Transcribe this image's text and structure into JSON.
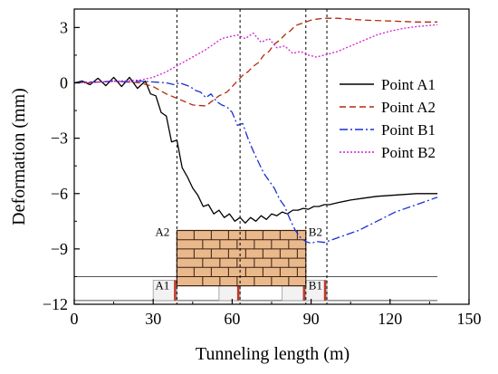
{
  "chart_data": {
    "type": "line",
    "xlabel": "Tunneling length (m)",
    "ylabel": "Deformation (mm)",
    "xlim": [
      0,
      150
    ],
    "ylim": [
      -12,
      4
    ],
    "xticks": [
      0,
      30,
      60,
      90,
      120,
      150
    ],
    "yticks": [
      3,
      0,
      -3,
      -6,
      -9,
      -12
    ],
    "xtick_labels": [
      "0",
      "30",
      "60",
      "90",
      "120",
      "150"
    ],
    "ytick_labels": [
      "3",
      "0",
      "−3",
      "−6",
      "−9",
      "−12"
    ],
    "grid": false,
    "legend_position": "right",
    "vertical_markers": [
      39,
      63,
      88,
      96
    ],
    "series": [
      {
        "name": "Point A1",
        "color": "#000000",
        "dash": "solid",
        "x": [
          0,
          3,
          6,
          9,
          12,
          15,
          18,
          21,
          24,
          27,
          29,
          31,
          33,
          35,
          37,
          39,
          41,
          43,
          45,
          47,
          49,
          51,
          53,
          55,
          57,
          59,
          61,
          63,
          65,
          67,
          69,
          71,
          73,
          75,
          77,
          79,
          81,
          83,
          85,
          87,
          89,
          91,
          93,
          95,
          97,
          100,
          105,
          110,
          115,
          120,
          125,
          130,
          138
        ],
        "y": [
          0,
          0.1,
          -0.1,
          0.25,
          -0.15,
          0.3,
          -0.2,
          0.3,
          -0.3,
          0.1,
          -0.6,
          -0.7,
          -1.6,
          -1.8,
          -3.2,
          -3.1,
          -4.6,
          -5.1,
          -5.7,
          -6.1,
          -6.7,
          -6.6,
          -7.1,
          -6.9,
          -7.3,
          -7.1,
          -7.5,
          -7.3,
          -7.6,
          -7.3,
          -7.5,
          -7.2,
          -7.4,
          -7.1,
          -7.2,
          -7.0,
          -7.1,
          -6.9,
          -6.9,
          -6.8,
          -6.85,
          -6.7,
          -6.7,
          -6.6,
          -6.6,
          -6.5,
          -6.35,
          -6.25,
          -6.15,
          -6.1,
          -6.05,
          -6.0,
          -6.0
        ]
      },
      {
        "name": "Point A2",
        "color": "#b22a0c",
        "dash": "7,4",
        "x": [
          0,
          5,
          10,
          15,
          20,
          25,
          30,
          35,
          40,
          45,
          50,
          55,
          58,
          60,
          62,
          64,
          66,
          68,
          70,
          72,
          74,
          76,
          78,
          80,
          82,
          84,
          86,
          88,
          90,
          92,
          95,
          100,
          105,
          110,
          120,
          130,
          138
        ],
        "y": [
          0,
          0,
          0.05,
          0.1,
          0.05,
          0,
          -0.2,
          -0.6,
          -0.9,
          -1.2,
          -1.25,
          -0.7,
          -0.5,
          -0.2,
          0.1,
          0.4,
          0.6,
          0.9,
          1.1,
          1.5,
          1.7,
          2.1,
          2.3,
          2.6,
          2.8,
          3.1,
          3.2,
          3.3,
          3.4,
          3.45,
          3.5,
          3.5,
          3.45,
          3.4,
          3.35,
          3.3,
          3.3
        ]
      },
      {
        "name": "Point B1",
        "color": "#1a2fd4",
        "dash": "9,3,2,3",
        "x": [
          0,
          5,
          10,
          15,
          20,
          25,
          30,
          35,
          38,
          40,
          42,
          44,
          46,
          48,
          50,
          52,
          54,
          56,
          58,
          60,
          62,
          64,
          66,
          68,
          70,
          72,
          74,
          76,
          78,
          80,
          82,
          84,
          86,
          88,
          90,
          92,
          95,
          98,
          102,
          108,
          115,
          122,
          130,
          138
        ],
        "y": [
          0,
          0.05,
          0.05,
          0.1,
          0.05,
          0.1,
          0.05,
          0,
          -0.1,
          0,
          -0.1,
          -0.2,
          -0.4,
          -0.5,
          -0.8,
          -0.6,
          -1.0,
          -1.2,
          -1.3,
          -1.6,
          -2.3,
          -2.2,
          -3.0,
          -3.7,
          -4.3,
          -4.9,
          -5.3,
          -5.7,
          -6.3,
          -6.7,
          -7.4,
          -8.0,
          -8.4,
          -8.6,
          -8.7,
          -8.6,
          -8.65,
          -8.5,
          -8.3,
          -8.0,
          -7.5,
          -7.0,
          -6.6,
          -6.2
        ]
      },
      {
        "name": "Point B2",
        "color": "#d11fd4",
        "dash": "2,2",
        "x": [
          0,
          5,
          10,
          15,
          20,
          25,
          30,
          35,
          40,
          45,
          50,
          53,
          56,
          59,
          62,
          65,
          68,
          71,
          74,
          77,
          80,
          83,
          86,
          89,
          92,
          95,
          100,
          105,
          110,
          115,
          120,
          125,
          130,
          138
        ],
        "y": [
          0,
          0.02,
          0.05,
          0.08,
          0.12,
          0.15,
          0.3,
          0.6,
          1.0,
          1.4,
          1.8,
          2.1,
          2.4,
          2.5,
          2.6,
          2.4,
          2.7,
          2.2,
          2.4,
          1.9,
          2.0,
          1.6,
          1.7,
          1.5,
          1.4,
          1.5,
          1.7,
          2.0,
          2.3,
          2.6,
          2.8,
          2.95,
          3.05,
          3.15
        ]
      }
    ],
    "schematic": {
      "label_a1": "A1",
      "label_a2": "A2",
      "label_b1": "B1",
      "label_b2": "B2",
      "wall_color": "#e9b98c",
      "mortar_color": "#3b1f10",
      "wall_x_range": [
        39,
        88
      ],
      "wall_y_range": [
        -11,
        -8
      ],
      "line_y": [
        -10.5,
        -11.8
      ],
      "segments": [
        [
          30,
          39
        ],
        [
          55,
          63
        ],
        [
          79,
          88
        ],
        [
          88,
          96
        ]
      ],
      "segment_y_range": [
        -10.7,
        -11.8
      ],
      "segment_fill": "#f2f2f2",
      "segment_edge_color": "#c0392b"
    }
  }
}
